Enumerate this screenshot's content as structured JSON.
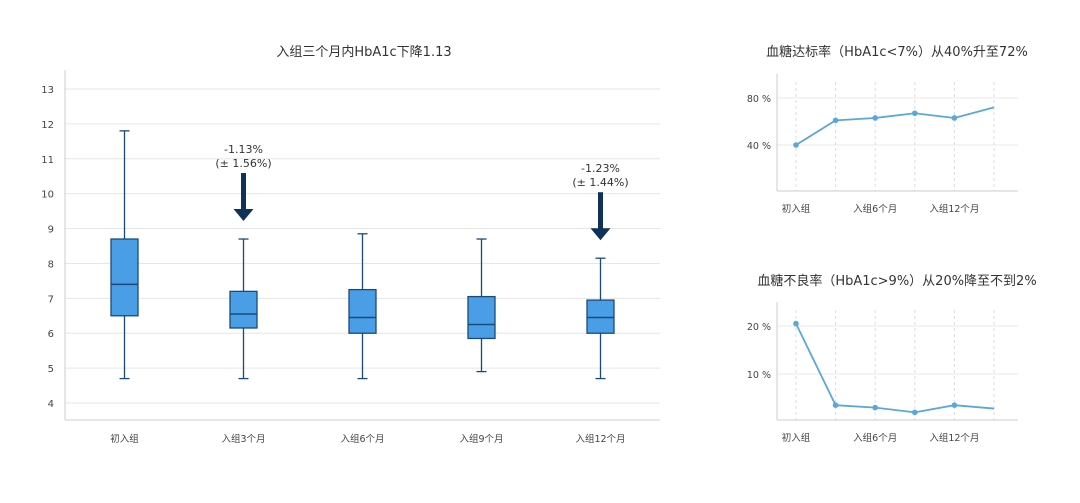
{
  "chart_data": [
    {
      "type": "box",
      "title": "入组三个月内HbA1c下降1.13",
      "xlabel": "",
      "ylabel": "",
      "ylim": [
        3.6,
        13.5
      ],
      "yticks": [
        "13",
        "12",
        "11",
        "10",
        "9",
        "8",
        "7",
        "6",
        "5",
        "4"
      ],
      "categories": [
        "初入组",
        "入组3个月",
        "入组6个月",
        "入组9个月",
        "入组12个月"
      ],
      "boxes": [
        {
          "min": 4.7,
          "q1": 6.5,
          "median": 7.4,
          "q3": 8.7,
          "max": 11.8
        },
        {
          "min": 4.7,
          "q1": 6.15,
          "median": 6.55,
          "q3": 7.2,
          "max": 8.7
        },
        {
          "min": 4.7,
          "q1": 6.0,
          "median": 6.45,
          "q3": 7.25,
          "max": 8.85
        },
        {
          "min": 4.9,
          "q1": 5.85,
          "median": 6.25,
          "q3": 7.05,
          "max": 8.7
        },
        {
          "min": 4.7,
          "q1": 6.0,
          "median": 6.45,
          "q3": 6.95,
          "max": 8.15
        }
      ],
      "annotations": [
        {
          "category": "入组3个月",
          "line1": "-1.13%",
          "line2": "(± 1.56%)"
        },
        {
          "category": "入组12个月",
          "line1": "-1.23%",
          "line2": "(± 1.44%)"
        }
      ],
      "grid": true,
      "box_color": "#4a9ee6",
      "line_color": "#1a4a7a",
      "arrow_color": "#0f3358"
    },
    {
      "type": "line",
      "title": "血糖达标率（HbA1c<7%）从40%升至72%",
      "x": [
        "初入组",
        "",
        "入组6个月",
        "",
        "入组12个月",
        ""
      ],
      "values": [
        40,
        61,
        63,
        67,
        63,
        72
      ],
      "yticks": [
        "80 %",
        "40 %"
      ],
      "ylim": [
        0,
        100
      ],
      "line_color": "#5aa7db"
    },
    {
      "type": "line",
      "title": "血糖不良率（HbA1c>9%）从20%降至不到2%",
      "x": [
        "初入组",
        "",
        "入组6个月",
        "",
        "入组12个月",
        ""
      ],
      "values": [
        20.5,
        3.5,
        3.0,
        2.0,
        3.5,
        2.8
      ],
      "yticks": [
        "20 %",
        "10 %"
      ],
      "ylim": [
        0,
        25
      ],
      "line_color": "#5aa7db"
    }
  ]
}
